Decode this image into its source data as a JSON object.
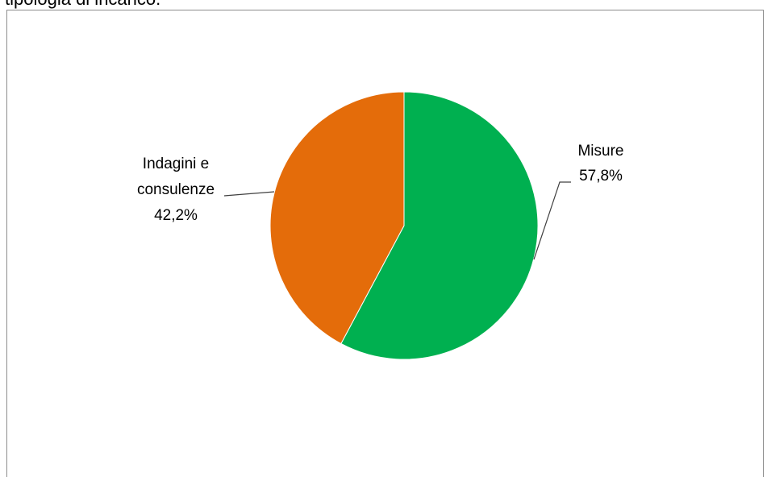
{
  "caption": "tipologia di incarico.",
  "colors": {
    "misure": "#00b050",
    "indagini": "#e46c0a",
    "frame": "#8c8c8c",
    "leader": "#404040"
  },
  "chart_data": {
    "type": "pie",
    "title": "",
    "slices": [
      {
        "name": "Misure",
        "value": 57.8,
        "label": "57,8%",
        "color": "#00b050"
      },
      {
        "name_lines": [
          "Indagini e",
          "consulenze"
        ],
        "name": "Indagini e consulenze",
        "value": 42.2,
        "label": "42,2%",
        "color": "#e46c0a"
      }
    ],
    "start_angle": "12 o'clock",
    "direction": "clockwise",
    "legend": "none"
  }
}
